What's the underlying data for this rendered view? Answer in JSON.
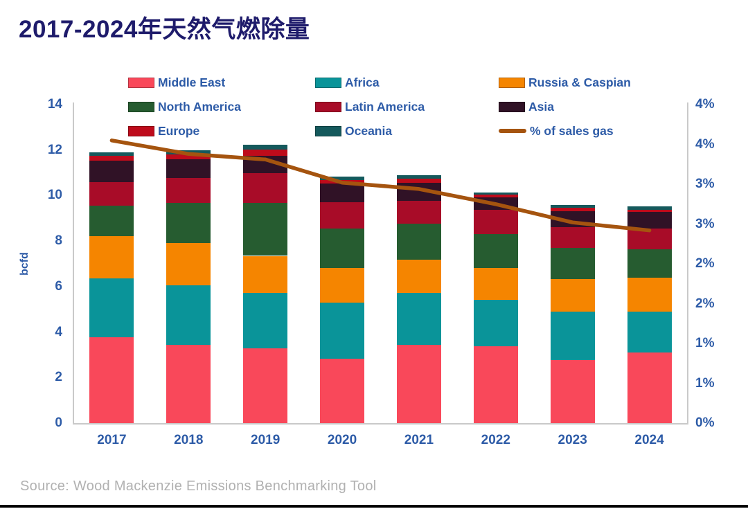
{
  "title": "2017-2024年天然气燃除量",
  "source": "Source: Wood Mackenzie Emissions Benchmarking Tool",
  "colors": {
    "title": "#1e1b6b",
    "text": "#2d5ba7",
    "axis_line": "#c9c9c9",
    "source_text": "#b1b1b1",
    "bottom_rule": "#000000"
  },
  "chart_data": {
    "type": "bar",
    "subtype": "stacked-bars-with-line",
    "title": "2017-2024年天然气燃除量",
    "categories": [
      "2017",
      "2018",
      "2019",
      "2020",
      "2021",
      "2022",
      "2023",
      "2024"
    ],
    "series": [
      {
        "name": "Middle East",
        "color": "#f9485a",
        "values": [
          3.78,
          3.43,
          3.28,
          2.82,
          3.43,
          3.38,
          2.77,
          3.1
        ]
      },
      {
        "name": "Africa",
        "color": "#0a9499",
        "values": [
          2.59,
          2.64,
          2.43,
          2.47,
          2.3,
          2.03,
          2.13,
          1.81
        ]
      },
      {
        "name": "Russia & Caspian",
        "color": "#f58500",
        "values": [
          1.85,
          1.83,
          1.64,
          1.54,
          1.45,
          1.42,
          1.42,
          1.47
        ]
      },
      {
        "name": "North America",
        "color": "#265c30",
        "values": [
          1.35,
          1.78,
          2.33,
          1.72,
          1.59,
          1.47,
          1.37,
          1.27
        ]
      },
      {
        "name": "Latin America",
        "color": "#a80c28",
        "values": [
          1.02,
          1.1,
          1.3,
          1.17,
          1.01,
          1.07,
          0.91,
          0.91
        ]
      },
      {
        "name": "Asia",
        "color": "#301226",
        "values": [
          0.94,
          0.83,
          0.78,
          0.81,
          0.77,
          0.54,
          0.71,
          0.71
        ]
      },
      {
        "name": "Europe",
        "color": "#be0b1b",
        "values": [
          0.22,
          0.2,
          0.25,
          0.15,
          0.2,
          0.12,
          0.17,
          0.1
        ]
      },
      {
        "name": "Oceania",
        "color": "#15595c",
        "values": [
          0.15,
          0.17,
          0.23,
          0.15,
          0.14,
          0.12,
          0.12,
          0.15
        ]
      }
    ],
    "line_series": {
      "name": "% of sales gas",
      "color": "#a5540f",
      "values": [
        3.55,
        3.38,
        3.31,
        3.02,
        2.94,
        2.75,
        2.52,
        2.42
      ]
    },
    "totals": [
      11.9,
      11.98,
      12.24,
      10.83,
      10.89,
      10.15,
      9.6,
      9.52
    ],
    "xlabel": "",
    "ylabel": "bcfd",
    "ylim": [
      0,
      14
    ],
    "ytick_labels": [
      "0",
      "2",
      "4",
      "6",
      "8",
      "10",
      "12",
      "14"
    ],
    "y2lim": [
      0,
      4
    ],
    "y2ticks": [
      0,
      0.5,
      1,
      1.5,
      2,
      2.5,
      3,
      3.5,
      4
    ],
    "y2tick_labels": [
      "0%",
      "1%",
      "1%",
      "2%",
      "2%",
      "3%",
      "3%",
      "4%",
      "4%"
    ],
    "grid": false,
    "legend_position": "top"
  }
}
